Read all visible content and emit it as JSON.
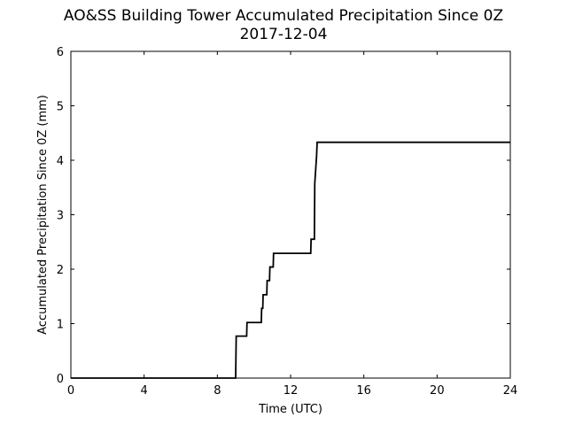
{
  "chart_data": {
    "type": "line",
    "title": "AO&SS Building Tower Accumulated Precipitation Since 0Z",
    "subtitle": "2017-12-04",
    "xlabel": "Time (UTC)",
    "ylabel": "Accumulated Precipitation Since 0Z (mm)",
    "xlim": [
      0,
      24
    ],
    "ylim": [
      0,
      6
    ],
    "xticks": [
      0,
      4,
      8,
      12,
      16,
      20,
      24
    ],
    "yticks": [
      0,
      1,
      2,
      3,
      4,
      5,
      6
    ],
    "grid": false,
    "line_color": "#000000",
    "series": [
      {
        "x": [
          0,
          9.0,
          9.03,
          9.6,
          9.62,
          10.4,
          10.42,
          10.48,
          10.5,
          10.7,
          10.72,
          10.85,
          10.87,
          11.05,
          11.07,
          13.1,
          13.12,
          13.3,
          13.32,
          13.42,
          13.45,
          14.0,
          24
        ],
        "y": [
          0,
          0,
          0.77,
          0.77,
          1.02,
          1.02,
          1.28,
          1.28,
          1.53,
          1.53,
          1.79,
          1.79,
          2.04,
          2.04,
          2.29,
          2.29,
          2.55,
          2.55,
          3.57,
          4.08,
          4.33,
          4.33,
          4.33
        ]
      }
    ]
  }
}
